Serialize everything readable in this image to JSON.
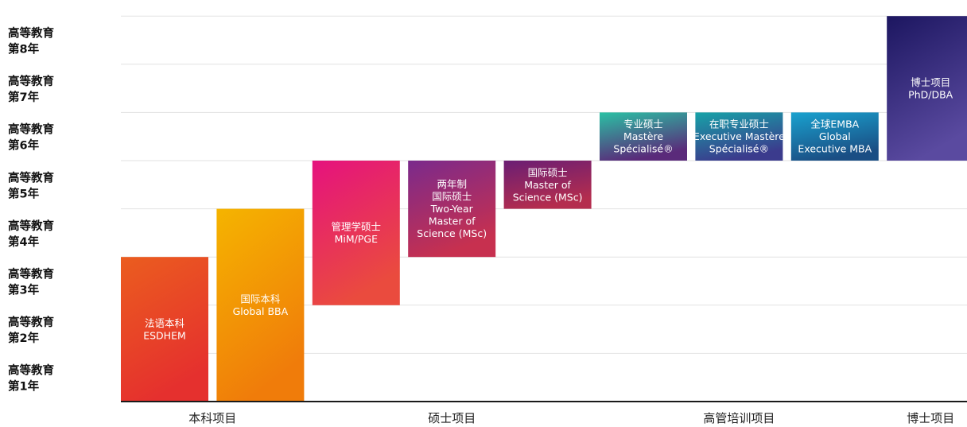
{
  "chart_data": {
    "type": "bar",
    "subtype": "floating-range",
    "y_axis": {
      "ticks": [
        {
          "line1": "高等教育",
          "line2": "第1年"
        },
        {
          "line1": "高等教育",
          "line2": "第2年"
        },
        {
          "line1": "高等教育",
          "line2": "第3年"
        },
        {
          "line1": "高等教育",
          "line2": "第4年"
        },
        {
          "line1": "高等教育",
          "line2": "第5年"
        },
        {
          "line1": "高等教育",
          "line2": "第6年"
        },
        {
          "line1": "高等教育",
          "line2": "第7年"
        },
        {
          "line1": "高等教育",
          "line2": "第8年"
        }
      ],
      "ylim": [
        0,
        8
      ]
    },
    "grid": true,
    "categories": [
      {
        "label": "本科项目",
        "slot_from": 0,
        "slot_to": 2
      },
      {
        "label": "硕士项目",
        "slot_from": 2,
        "slot_to": 5
      },
      {
        "label": "高管培训项目",
        "slot_from": 5,
        "slot_to": 8
      },
      {
        "label": "博士项目",
        "slot_from": 8,
        "slot_to": 9
      }
    ],
    "bars": [
      {
        "slot": 0,
        "start_year": 0,
        "end_year": 3,
        "lines": [
          "法语本科",
          "ESDHEM"
        ],
        "color_top": "#eb5d1f",
        "color_bottom": "#e5302e"
      },
      {
        "slot": 1,
        "start_year": 0,
        "end_year": 4,
        "lines": [
          "国际本科",
          "Global BBA"
        ],
        "color_top": "#f5b400",
        "color_bottom": "#f07c0a"
      },
      {
        "slot": 2,
        "start_year": 2,
        "end_year": 5,
        "lines": [
          "管理学硕士",
          "MiM/PGE"
        ],
        "color_top": "#e5127e",
        "color_bottom": "#ea4b3e"
      },
      {
        "slot": 3,
        "start_year": 3,
        "end_year": 5,
        "lines": [
          "两年制",
          "国际硕士",
          "Two-Year",
          "Master of",
          "Science (MSc)"
        ],
        "color_top": "#7a2a8c",
        "color_bottom": "#c7304f"
      },
      {
        "slot": 4,
        "start_year": 4,
        "end_year": 5,
        "lines": [
          "国际硕士",
          "Master of",
          "Science (MSc)"
        ],
        "color_top": "#6a1e74",
        "color_bottom": "#b42d4e"
      },
      {
        "slot": 5,
        "start_year": 5,
        "end_year": 6,
        "lines": [
          "专业硕士",
          "Mastère",
          "Spécialisé®"
        ],
        "color_top": "#2ac1a4",
        "color_bottom": "#5a2a7a"
      },
      {
        "slot": 6,
        "start_year": 5,
        "end_year": 6,
        "lines": [
          "在职专业硕士",
          "Executive Mastère",
          "Spécialisé®"
        ],
        "color_top": "#17a3a8",
        "color_bottom": "#3b3b8d"
      },
      {
        "slot": 7,
        "start_year": 5,
        "end_year": 6,
        "lines": [
          "全球EMBA",
          "Global",
          "Executive MBA"
        ],
        "color_top": "#19a2cf",
        "color_bottom": "#1a4e84"
      },
      {
        "slot": 8,
        "start_year": 5,
        "end_year": 8,
        "lines": [
          "博士项目",
          "PhD/DBA"
        ],
        "color_top": "#1c1660",
        "color_bottom": "#5a4aa0"
      }
    ]
  }
}
